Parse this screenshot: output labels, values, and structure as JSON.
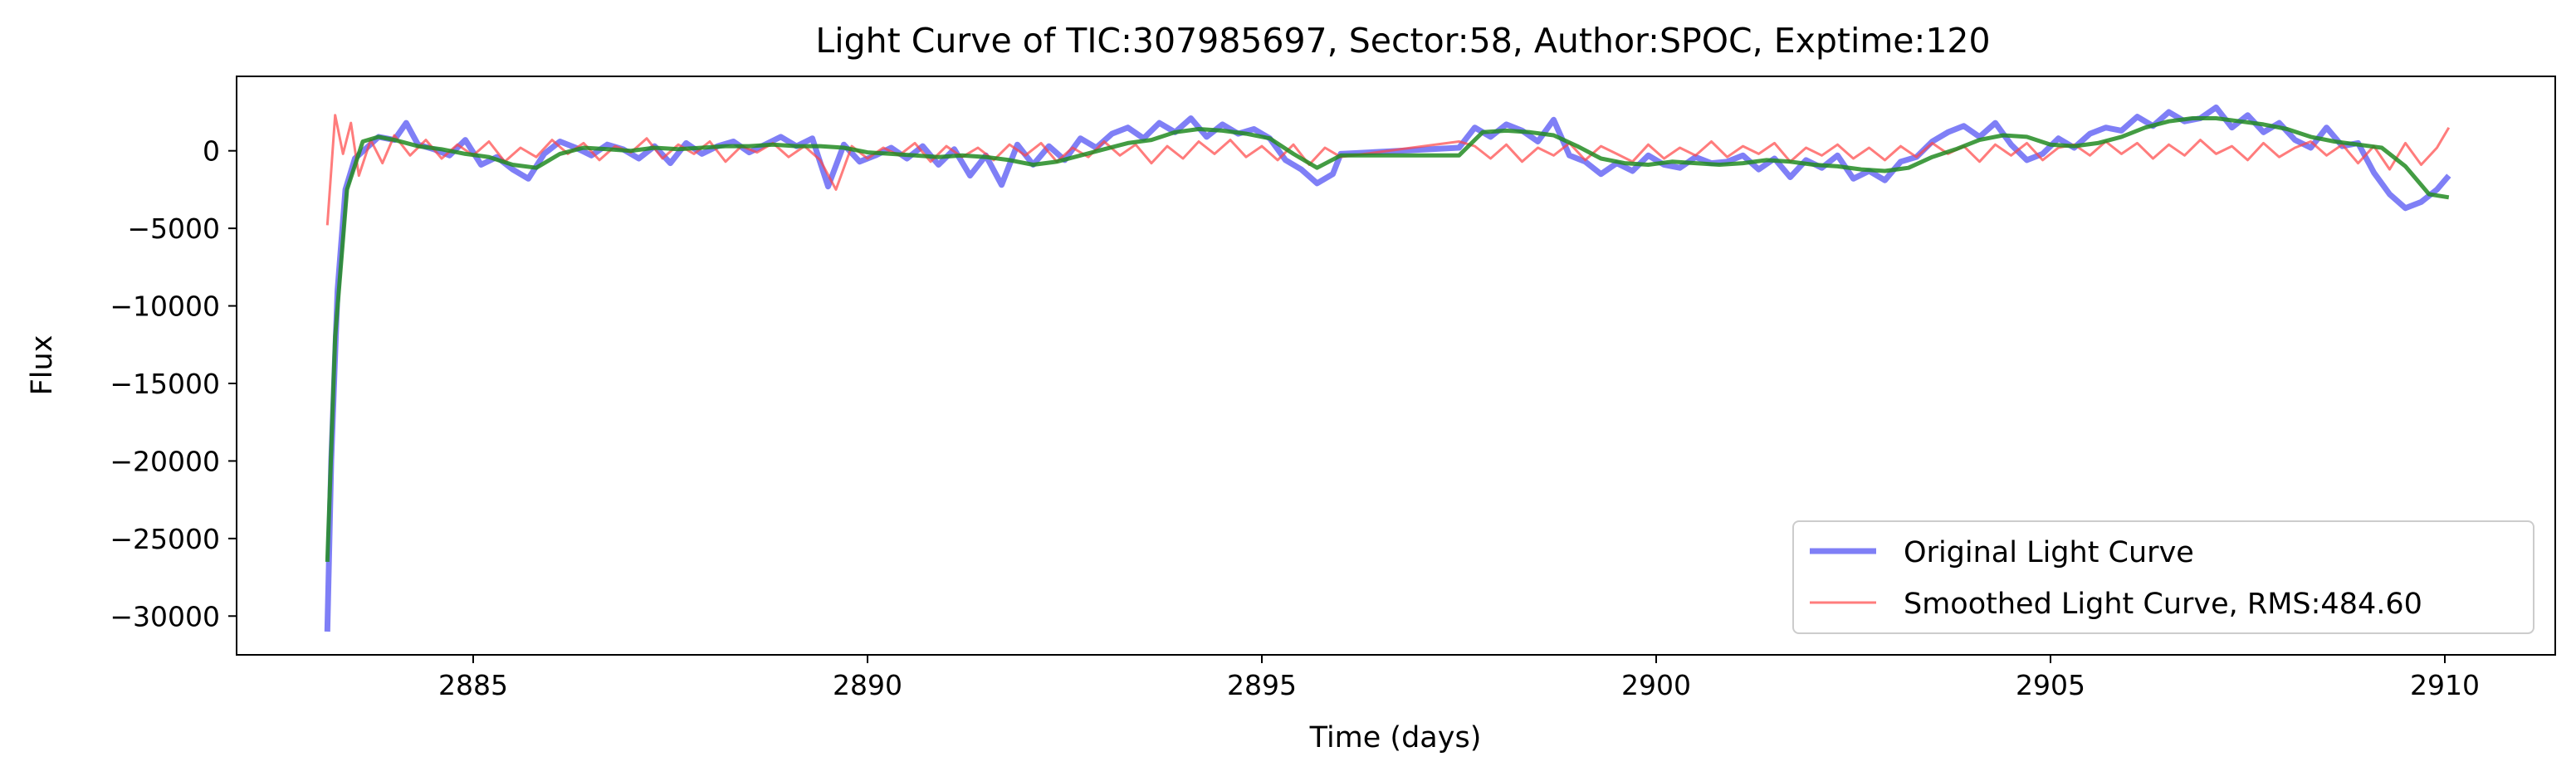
{
  "chart_data": {
    "type": "line",
    "title": "Light Curve of TIC:307985697, Sector:58, Author:SPOC, Exptime:120",
    "xlabel": "Time (days)",
    "ylabel": "Flux",
    "xlim": [
      2882.0,
      2911.4
    ],
    "ylim": [
      -32500,
      4800
    ],
    "xticks": [
      2885,
      2890,
      2895,
      2900,
      2905,
      2910
    ],
    "yticks": [
      0,
      -5000,
      -10000,
      -15000,
      -20000,
      -25000,
      -30000
    ],
    "grid": false,
    "legend_position": "bottom-right",
    "series": [
      {
        "name": "Original Light Curve",
        "color": "#0000ee",
        "x": [
          2883.15,
          2883.2,
          2883.28,
          2883.38,
          2883.5,
          2883.65,
          2883.8,
          2884.0,
          2884.15,
          2884.3,
          2884.5,
          2884.7,
          2884.9,
          2885.1,
          2885.3,
          2885.5,
          2885.7,
          2885.9,
          2886.1,
          2886.3,
          2886.5,
          2886.7,
          2886.9,
          2887.1,
          2887.3,
          2887.5,
          2887.7,
          2887.9,
          2888.1,
          2888.3,
          2888.5,
          2888.7,
          2888.9,
          2889.1,
          2889.3,
          2889.5,
          2889.7,
          2889.9,
          2890.1,
          2890.3,
          2890.5,
          2890.7,
          2890.9,
          2891.1,
          2891.3,
          2891.5,
          2891.7,
          2891.9,
          2892.1,
          2892.3,
          2892.5,
          2892.7,
          2892.9,
          2893.1,
          2893.3,
          2893.5,
          2893.7,
          2893.9,
          2894.1,
          2894.3,
          2894.5,
          2894.7,
          2894.9,
          2895.1,
          2895.3,
          2895.5,
          2895.7,
          2895.9,
          2896.0,
          2897.5,
          2897.7,
          2897.9,
          2898.1,
          2898.3,
          2898.5,
          2898.7,
          2898.9,
          2899.1,
          2899.3,
          2899.5,
          2899.7,
          2899.9,
          2900.1,
          2900.3,
          2900.5,
          2900.7,
          2900.9,
          2901.1,
          2901.3,
          2901.5,
          2901.7,
          2901.9,
          2902.1,
          2902.3,
          2902.5,
          2902.7,
          2902.9,
          2903.1,
          2903.3,
          2903.5,
          2903.7,
          2903.9,
          2904.1,
          2904.3,
          2904.5,
          2904.7,
          2904.9,
          2905.1,
          2905.3,
          2905.5,
          2905.7,
          2905.9,
          2906.1,
          2906.3,
          2906.5,
          2906.7,
          2906.9,
          2907.1,
          2907.3,
          2907.5,
          2907.7,
          2907.9,
          2908.1,
          2908.3,
          2908.5,
          2908.7,
          2908.9,
          2909.1,
          2909.3,
          2909.5,
          2909.7,
          2909.9,
          2910.05
        ],
        "values": [
          -31000,
          -20000,
          -9000,
          -2500,
          -500,
          200,
          900,
          700,
          1800,
          400,
          100,
          -300,
          700,
          -900,
          -400,
          -1200,
          -1800,
          -200,
          600,
          200,
          -300,
          400,
          100,
          -500,
          300,
          -800,
          500,
          -200,
          300,
          600,
          -100,
          400,
          900,
          300,
          800,
          -2300,
          400,
          -700,
          -300,
          200,
          -500,
          300,
          -900,
          100,
          -1600,
          -300,
          -2200,
          400,
          -900,
          300,
          -600,
          800,
          200,
          1100,
          1500,
          800,
          1800,
          1200,
          2100,
          900,
          1700,
          1100,
          1400,
          800,
          -600,
          -1200,
          -2100,
          -1500,
          -200,
          200,
          1500,
          900,
          1700,
          1300,
          600,
          2000,
          -300,
          -700,
          -1500,
          -800,
          -1300,
          -300,
          -900,
          -1100,
          -400,
          -800,
          -700,
          -300,
          -1200,
          -500,
          -1700,
          -600,
          -1100,
          -300,
          -1800,
          -1300,
          -1900,
          -700,
          -400,
          600,
          1200,
          1600,
          900,
          1800,
          400,
          -600,
          -200,
          800,
          200,
          1100,
          1500,
          1300,
          2200,
          1600,
          2500,
          1900,
          2100,
          2800,
          1500,
          2300,
          1200,
          1800,
          700,
          200,
          1500,
          300,
          500,
          -1400,
          -2800,
          -3700,
          -3300,
          -2500,
          -1600
        ]
      },
      {
        "name": "Smoothed Light Curve, RMS:484.60",
        "color": "#ff4444",
        "x": [
          2883.15,
          2883.25,
          2883.35,
          2883.45,
          2883.55,
          2883.7,
          2883.85,
          2884.0,
          2884.2,
          2884.4,
          2884.6,
          2884.8,
          2885.0,
          2885.2,
          2885.4,
          2885.6,
          2885.8,
          2886.0,
          2886.2,
          2886.4,
          2886.6,
          2886.8,
          2887.0,
          2887.2,
          2887.4,
          2887.6,
          2887.8,
          2888.0,
          2888.2,
          2888.4,
          2888.6,
          2888.8,
          2889.0,
          2889.2,
          2889.4,
          2889.6,
          2889.8,
          2890.0,
          2890.2,
          2890.4,
          2890.6,
          2890.8,
          2891.0,
          2891.2,
          2891.4,
          2891.6,
          2891.8,
          2892.0,
          2892.2,
          2892.4,
          2892.6,
          2892.8,
          2893.0,
          2893.2,
          2893.4,
          2893.6,
          2893.8,
          2894.0,
          2894.2,
          2894.4,
          2894.6,
          2894.8,
          2895.0,
          2895.2,
          2895.4,
          2895.6,
          2895.8,
          2896.0,
          2897.5,
          2897.7,
          2897.9,
          2898.1,
          2898.3,
          2898.5,
          2898.7,
          2898.9,
          2899.1,
          2899.3,
          2899.5,
          2899.7,
          2899.9,
          2900.1,
          2900.3,
          2900.5,
          2900.7,
          2900.9,
          2901.1,
          2901.3,
          2901.5,
          2901.7,
          2901.9,
          2902.1,
          2902.3,
          2902.5,
          2902.7,
          2902.9,
          2903.1,
          2903.3,
          2903.5,
          2903.7,
          2903.9,
          2904.1,
          2904.3,
          2904.5,
          2904.7,
          2904.9,
          2905.1,
          2905.3,
          2905.5,
          2905.7,
          2905.9,
          2906.1,
          2906.3,
          2906.5,
          2906.7,
          2906.9,
          2907.1,
          2907.3,
          2907.5,
          2907.7,
          2907.9,
          2908.1,
          2908.3,
          2908.5,
          2908.7,
          2908.9,
          2909.1,
          2909.3,
          2909.5,
          2909.7,
          2909.9,
          2910.05
        ],
        "values": [
          -4800,
          2300,
          -200,
          1800,
          -1600,
          700,
          -800,
          1000,
          -300,
          700,
          -500,
          400,
          -300,
          600,
          -700,
          200,
          -400,
          700,
          -200,
          500,
          -600,
          300,
          -100,
          800,
          -500,
          400,
          -200,
          600,
          -700,
          300,
          -100,
          500,
          -400,
          300,
          -600,
          -2500,
          300,
          -500,
          200,
          -300,
          500,
          -700,
          300,
          -400,
          200,
          -600,
          400,
          -300,
          500,
          -700,
          200,
          -400,
          600,
          -300,
          400,
          -800,
          300,
          -500,
          600,
          -200,
          700,
          -400,
          300,
          -600,
          400,
          -900,
          200,
          -400,
          600,
          300,
          -500,
          400,
          -700,
          200,
          -300,
          500,
          -600,
          300,
          -200,
          -700,
          400,
          -500,
          200,
          -300,
          600,
          -400,
          300,
          -200,
          500,
          -700,
          200,
          -300,
          400,
          -500,
          200,
          -600,
          300,
          -400,
          500,
          -200,
          300,
          -700,
          400,
          -300,
          500,
          -600,
          200,
          400,
          -300,
          600,
          -200,
          500,
          -500,
          400,
          -300,
          700,
          -200,
          300,
          -600,
          500,
          -400,
          200,
          600,
          -300,
          400,
          -800,
          300,
          -1200,
          500,
          -900,
          200,
          1500
        ]
      },
      {
        "name": "",
        "color": "#228B22",
        "x": [
          2883.15,
          2883.25,
          2883.4,
          2883.6,
          2883.8,
          2884.0,
          2884.3,
          2884.6,
          2884.9,
          2885.2,
          2885.5,
          2885.8,
          2886.1,
          2886.4,
          2886.7,
          2887.0,
          2887.3,
          2887.6,
          2887.9,
          2888.2,
          2888.5,
          2888.8,
          2889.1,
          2889.4,
          2889.7,
          2890.0,
          2890.3,
          2890.6,
          2890.9,
          2891.2,
          2891.5,
          2891.8,
          2892.1,
          2892.4,
          2892.7,
          2893.0,
          2893.3,
          2893.6,
          2893.9,
          2894.2,
          2894.5,
          2894.8,
          2895.1,
          2895.4,
          2895.7,
          2896.0,
          2897.5,
          2897.8,
          2898.1,
          2898.4,
          2898.7,
          2899.0,
          2899.3,
          2899.6,
          2899.9,
          2900.2,
          2900.5,
          2900.8,
          2901.1,
          2901.4,
          2901.7,
          2902.0,
          2902.3,
          2902.6,
          2902.9,
          2903.2,
          2903.5,
          2903.8,
          2904.1,
          2904.4,
          2904.7,
          2905.0,
          2905.3,
          2905.6,
          2905.9,
          2906.2,
          2906.5,
          2906.8,
          2907.1,
          2907.4,
          2907.7,
          2908.0,
          2908.3,
          2908.6,
          2908.9,
          2909.2,
          2909.5,
          2909.8,
          2910.05
        ],
        "values": [
          -26500,
          -12000,
          -2500,
          600,
          900,
          700,
          300,
          100,
          -200,
          -400,
          -900,
          -1100,
          -200,
          200,
          100,
          0,
          200,
          100,
          200,
          300,
          300,
          400,
          300,
          300,
          200,
          -100,
          -200,
          -300,
          -400,
          -300,
          -400,
          -600,
          -900,
          -700,
          -300,
          100,
          500,
          700,
          1200,
          1400,
          1300,
          1100,
          800,
          -200,
          -1100,
          -300,
          -300,
          1200,
          1300,
          1200,
          1000,
          300,
          -500,
          -800,
          -900,
          -700,
          -800,
          -900,
          -800,
          -600,
          -700,
          -900,
          -1000,
          -1200,
          -1300,
          -1100,
          -400,
          100,
          700,
          1000,
          900,
          400,
          300,
          500,
          900,
          1500,
          1900,
          2100,
          2100,
          1900,
          1700,
          1400,
          900,
          600,
          400,
          200,
          -1000,
          -2800,
          -3000
        ]
      }
    ],
    "legend": [
      "Original Light Curve",
      "Smoothed Light Curve, RMS:484.60"
    ]
  }
}
